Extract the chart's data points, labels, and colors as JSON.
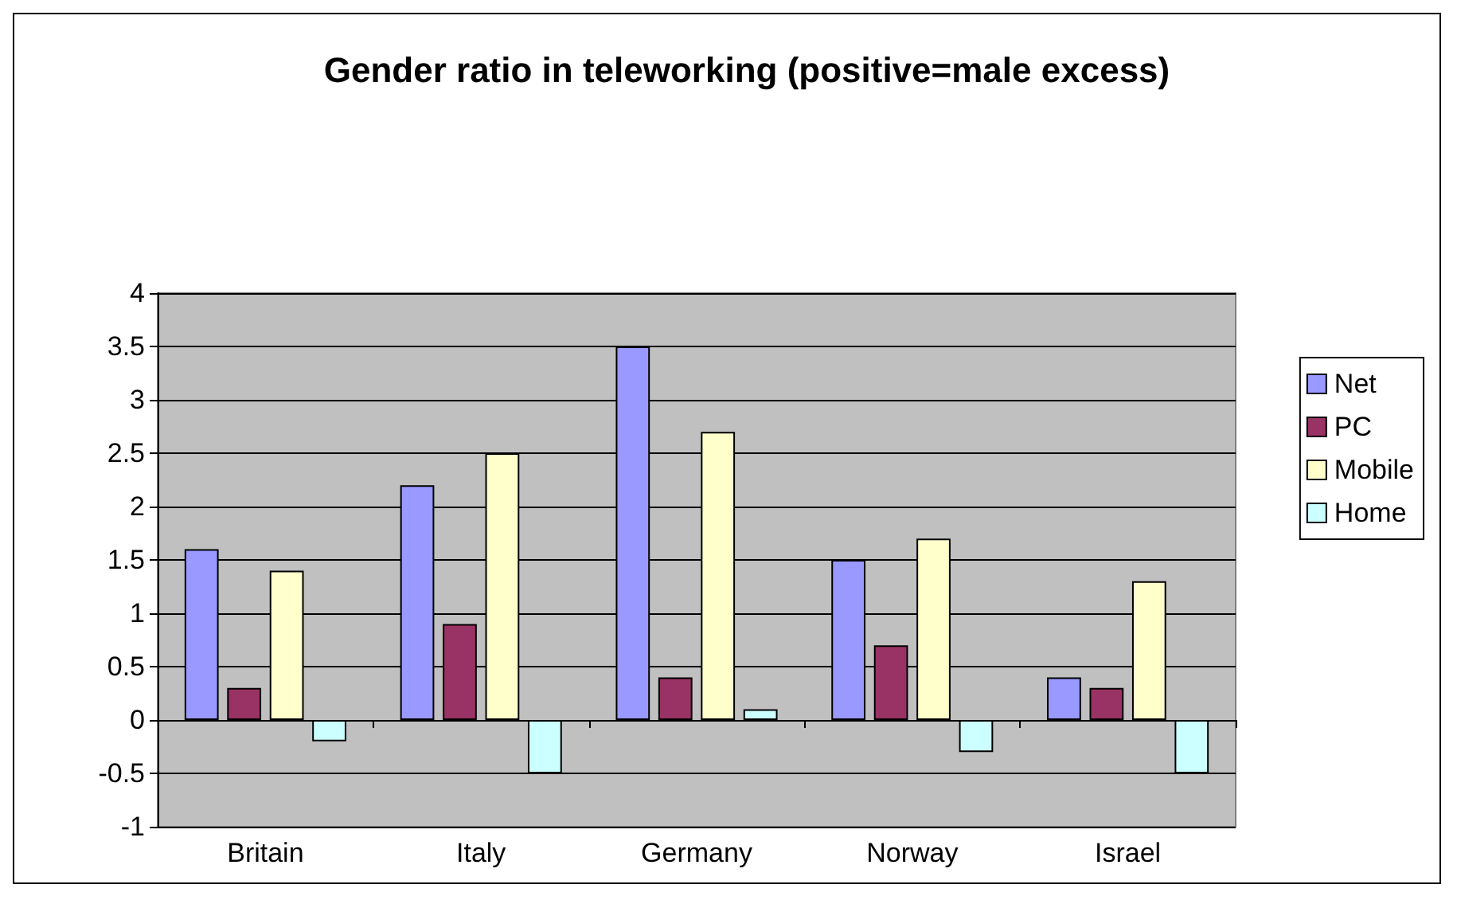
{
  "chart_data": {
    "type": "bar",
    "title": "Gender ratio in teleworking (positive=male excess)",
    "categories": [
      "Britain",
      "Italy",
      "Germany",
      "Norway",
      "Israel"
    ],
    "series": [
      {
        "name": "Net",
        "color": "#9999ff",
        "values": [
          1.6,
          2.2,
          3.5,
          1.5,
          0.4
        ]
      },
      {
        "name": "PC",
        "color": "#993366",
        "values": [
          0.3,
          0.9,
          0.4,
          0.7,
          0.3
        ]
      },
      {
        "name": "Mobile",
        "color": "#ffffcc",
        "values": [
          1.4,
          2.5,
          2.7,
          1.7,
          1.3
        ]
      },
      {
        "name": "Home",
        "color": "#ccffff",
        "values": [
          -0.2,
          -0.5,
          0.1,
          -0.3,
          -0.5
        ]
      }
    ],
    "ylim": [
      -1,
      4
    ],
    "yticks": [
      -1,
      -0.5,
      0,
      0.5,
      1,
      1.5,
      2,
      2.5,
      3,
      3.5,
      4
    ],
    "grid": "y",
    "legend": "right"
  }
}
